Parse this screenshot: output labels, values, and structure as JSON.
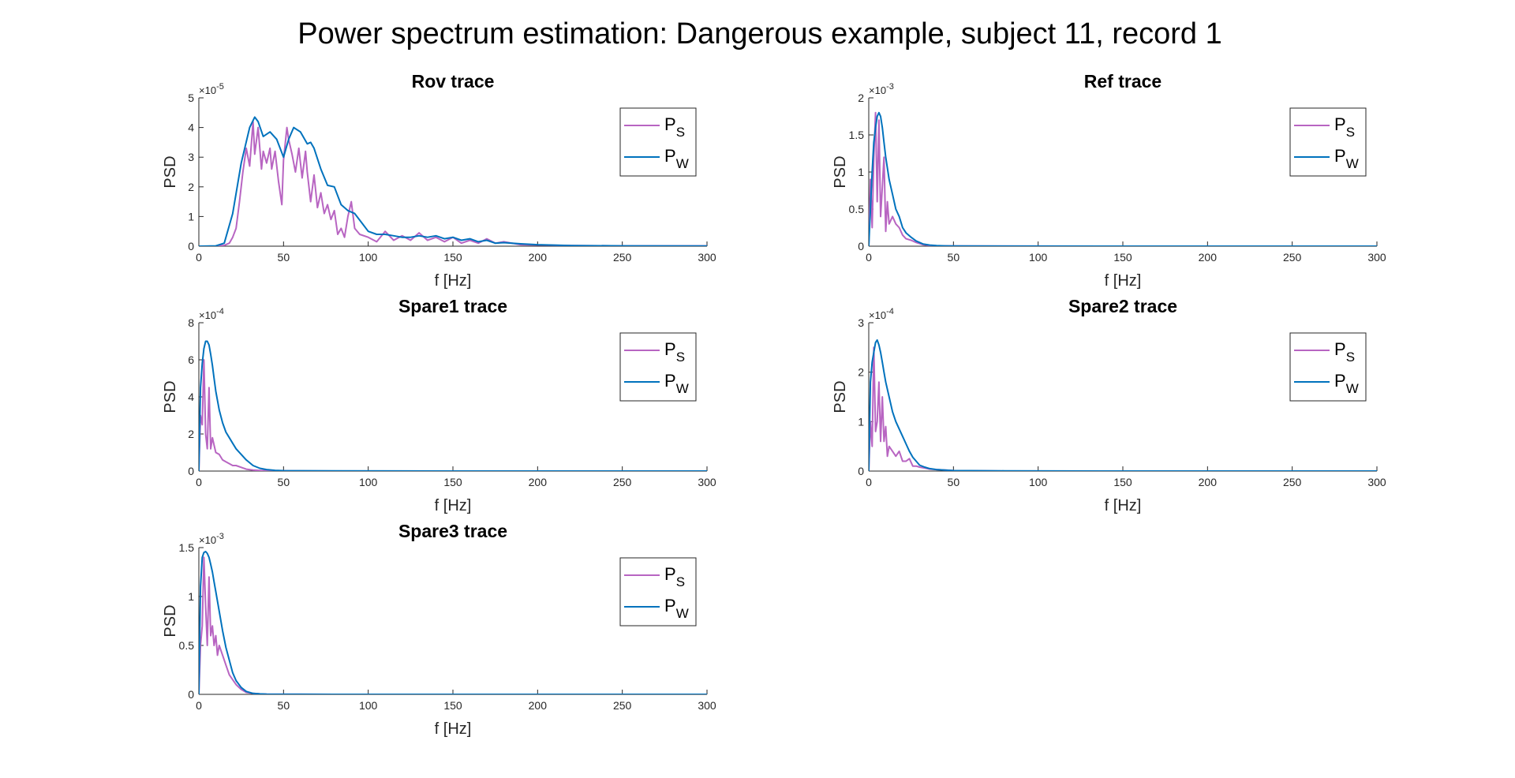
{
  "figure_title": "Power spectrum estimation: Dangerous example, subject 11, record 1",
  "colors": {
    "PS": "#B865C2",
    "PW": "#0072BD",
    "axis": "#262626"
  },
  "chart_data": [
    {
      "type": "line",
      "title": "Rov trace",
      "xlabel": "f [Hz]",
      "ylabel": "PSD",
      "xlim": [
        0,
        300
      ],
      "ylim": [
        0,
        5e-05
      ],
      "xticks": [
        0,
        50,
        100,
        150,
        200,
        250,
        300
      ],
      "yticks": [
        0,
        1e-05,
        2e-05,
        3e-05,
        4e-05,
        5e-05
      ],
      "ytick_labels": [
        "0",
        "1",
        "2",
        "3",
        "4",
        "5"
      ],
      "exponent": "-5",
      "legend": {
        "position": "top-right",
        "entries": [
          {
            "base": "P",
            "sub": "S"
          },
          {
            "base": "P",
            "sub": "W"
          }
        ]
      },
      "series": [
        {
          "name": "PS",
          "x": [
            0,
            10,
            15,
            18,
            20,
            22,
            24,
            26,
            28,
            30,
            32,
            33,
            35,
            37,
            38,
            40,
            42,
            43,
            45,
            47,
            49,
            50,
            52,
            53,
            55,
            57,
            59,
            61,
            63,
            64,
            66,
            68,
            70,
            72,
            74,
            76,
            78,
            80,
            82,
            84,
            86,
            88,
            90,
            92,
            95,
            100,
            105,
            110,
            115,
            120,
            125,
            130,
            135,
            140,
            145,
            150,
            155,
            160,
            165,
            170,
            175,
            180,
            190,
            200,
            220,
            250,
            275,
            300
          ],
          "y": [
            0,
            0,
            3e-07,
            1e-06,
            3e-06,
            6e-06,
            1.5e-05,
            2.5e-05,
            3.3e-05,
            2.7e-05,
            4.2e-05,
            3.1e-05,
            4e-05,
            2.6e-05,
            3.2e-05,
            2.8e-05,
            3.3e-05,
            2.6e-05,
            3.2e-05,
            2.2e-05,
            1.4e-05,
            2.9e-05,
            4e-05,
            3.6e-05,
            3.1e-05,
            2.5e-05,
            3.3e-05,
            2.3e-05,
            3.2e-05,
            2.5e-05,
            1.5e-05,
            2.4e-05,
            1.3e-05,
            1.8e-05,
            1.1e-05,
            1.4e-05,
            9e-06,
            1.2e-05,
            4e-06,
            6e-06,
            3e-06,
            1e-05,
            1.5e-05,
            6e-06,
            4e-06,
            3e-06,
            1.5e-06,
            5e-06,
            2e-06,
            3.5e-06,
            2e-06,
            4.5e-06,
            2e-06,
            3e-06,
            1.5e-06,
            3e-06,
            1e-06,
            2e-06,
            1e-06,
            2.5e-06,
            1e-06,
            1.5e-06,
            5e-07,
            4e-07,
            2e-07,
            1e-07,
            1e-07,
            1e-07
          ]
        },
        {
          "name": "PW",
          "x": [
            0,
            10,
            15,
            20,
            25,
            30,
            33,
            35,
            38,
            42,
            46,
            50,
            53,
            56,
            60,
            64,
            66,
            68,
            72,
            76,
            80,
            84,
            88,
            92,
            96,
            100,
            105,
            110,
            115,
            120,
            125,
            130,
            135,
            140,
            145,
            150,
            155,
            160,
            165,
            170,
            175,
            180,
            190,
            200,
            220,
            250,
            300
          ],
          "y": [
            0,
            1e-07,
            1e-06,
            1.1e-05,
            2.8e-05,
            4e-05,
            4.35e-05,
            4.2e-05,
            3.7e-05,
            3.85e-05,
            3.6e-05,
            3e-05,
            3.6e-05,
            4e-05,
            3.85e-05,
            3.45e-05,
            3.5e-05,
            3.3e-05,
            2.6e-05,
            2.05e-05,
            2e-05,
            1.4e-05,
            1.2e-05,
            1.1e-05,
            8e-06,
            5e-06,
            4e-06,
            4e-06,
            3.5e-06,
            3e-06,
            3e-06,
            3.5e-06,
            3e-06,
            3.5e-06,
            2.5e-06,
            3e-06,
            2e-06,
            2.5e-06,
            1.5e-06,
            2e-06,
            1e-06,
            1.2e-06,
            8e-07,
            5e-07,
            2e-07,
            1e-07,
            5e-08
          ]
        }
      ]
    },
    {
      "type": "line",
      "title": "Ref trace",
      "xlabel": "f [Hz]",
      "ylabel": "PSD",
      "xlim": [
        0,
        300
      ],
      "ylim": [
        0,
        0.002
      ],
      "xticks": [
        0,
        50,
        100,
        150,
        200,
        250,
        300
      ],
      "yticks": [
        0,
        0.0005,
        0.001,
        0.0015,
        0.002
      ],
      "ytick_labels": [
        "0",
        "0.5",
        "1",
        "1.5",
        "2"
      ],
      "exponent": "-3",
      "legend": {
        "position": "top-right",
        "entries": [
          {
            "base": "P",
            "sub": "S"
          },
          {
            "base": "P",
            "sub": "W"
          }
        ]
      },
      "series": [
        {
          "name": "PS",
          "x": [
            0,
            1,
            2,
            3,
            4,
            5,
            6,
            7,
            8,
            9,
            10,
            11,
            12,
            14,
            16,
            18,
            20,
            22,
            25,
            28,
            32,
            36,
            40,
            50,
            80,
            150,
            300
          ],
          "y": [
            0,
            0.0009,
            0.00025,
            0.0012,
            0.0018,
            0.0006,
            0.0017,
            0.0004,
            0.0008,
            0.0012,
            0.0002,
            0.0006,
            0.0003,
            0.0004,
            0.0003,
            0.00025,
            0.00015,
            0.0001,
            8e-05,
            5e-05,
            2e-05,
            1e-05,
            5e-06,
            2e-06,
            1e-06,
            0,
            0
          ]
        },
        {
          "name": "PW",
          "x": [
            0,
            1,
            2,
            3,
            4,
            5,
            6,
            7,
            8,
            9,
            10,
            12,
            14,
            16,
            18,
            20,
            22,
            25,
            28,
            32,
            36,
            40,
            45,
            50,
            80,
            150,
            300
          ],
          "y": [
            0,
            0.0005,
            0.001,
            0.0014,
            0.0016,
            0.00175,
            0.0018,
            0.00175,
            0.0016,
            0.0014,
            0.0012,
            0.0009,
            0.0007,
            0.0005,
            0.0004,
            0.00025,
            0.00018,
            0.00012,
            7e-05,
            3e-05,
            1.5e-05,
            8e-06,
            4e-06,
            2e-06,
            1e-06,
            0,
            0
          ]
        }
      ]
    },
    {
      "type": "line",
      "title": "Spare1 trace",
      "xlabel": "f [Hz]",
      "ylabel": "PSD",
      "xlim": [
        0,
        300
      ],
      "ylim": [
        0,
        0.0008
      ],
      "xticks": [
        0,
        50,
        100,
        150,
        200,
        250,
        300
      ],
      "yticks": [
        0,
        0.0002,
        0.0004,
        0.0006,
        0.0008
      ],
      "ytick_labels": [
        "0",
        "2",
        "4",
        "6",
        "8"
      ],
      "exponent": "-4",
      "legend": {
        "position": "top-right",
        "entries": [
          {
            "base": "P",
            "sub": "S"
          },
          {
            "base": "P",
            "sub": "W"
          }
        ]
      },
      "series": [
        {
          "name": "PS",
          "x": [
            0,
            1,
            2,
            3,
            4,
            5,
            6,
            7,
            8,
            9,
            10,
            12,
            14,
            16,
            18,
            20,
            22,
            25,
            28,
            32,
            36,
            40,
            50,
            80,
            150,
            300
          ],
          "y": [
            0,
            0.0003,
            0.00025,
            0.0006,
            0.0002,
            0.00012,
            0.00045,
            0.00012,
            0.00018,
            0.00014,
            0.0001,
            9e-05,
            6e-05,
            5e-05,
            4e-05,
            3e-05,
            3e-05,
            2e-05,
            1e-05,
            5e-06,
            3e-06,
            2e-06,
            1e-06,
            0,
            0,
            0
          ]
        },
        {
          "name": "PW",
          "x": [
            0,
            1,
            2,
            3,
            4,
            5,
            6,
            7,
            8,
            9,
            10,
            12,
            14,
            16,
            18,
            20,
            22,
            25,
            28,
            32,
            36,
            40,
            45,
            50,
            80,
            150,
            300
          ],
          "y": [
            0,
            0.00045,
            0.00058,
            0.00066,
            0.0007,
            0.0007,
            0.00068,
            0.00063,
            0.00057,
            0.0005,
            0.00043,
            0.00033,
            0.00026,
            0.00021,
            0.00018,
            0.00015,
            0.00012,
            9e-05,
            6e-05,
            3e-05,
            1.5e-05,
            8e-06,
            4e-06,
            2e-06,
            1e-06,
            0,
            0
          ]
        }
      ]
    },
    {
      "type": "line",
      "title": "Spare2 trace",
      "xlabel": "f [Hz]",
      "ylabel": "PSD",
      "xlim": [
        0,
        300
      ],
      "ylim": [
        0,
        0.0003
      ],
      "xticks": [
        0,
        50,
        100,
        150,
        200,
        250,
        300
      ],
      "yticks": [
        0,
        0.0001,
        0.0002,
        0.0003
      ],
      "ytick_labels": [
        "0",
        "1",
        "2",
        "3"
      ],
      "exponent": "-4",
      "legend": {
        "position": "top-right",
        "entries": [
          {
            "base": "P",
            "sub": "S"
          },
          {
            "base": "P",
            "sub": "W"
          }
        ]
      },
      "series": [
        {
          "name": "PS",
          "x": [
            0,
            1,
            2,
            3,
            4,
            5,
            6,
            7,
            8,
            9,
            10,
            11,
            12,
            14,
            16,
            18,
            20,
            22,
            24,
            26,
            28,
            30,
            33,
            36,
            40,
            45,
            50,
            80,
            150,
            300
          ],
          "y": [
            0,
            0.0001,
            5e-05,
            0.00025,
            8e-05,
            0.0001,
            0.00018,
            6e-05,
            0.00015,
            6e-05,
            9e-05,
            3e-05,
            5e-05,
            4e-05,
            3e-05,
            4e-05,
            2e-05,
            2e-05,
            2.5e-05,
            1e-05,
            1e-05,
            8e-06,
            6e-06,
            4e-06,
            3e-06,
            2e-06,
            1e-06,
            0,
            0,
            0
          ]
        },
        {
          "name": "PW",
          "x": [
            0,
            1,
            2,
            3,
            4,
            5,
            6,
            7,
            8,
            9,
            10,
            12,
            14,
            16,
            18,
            20,
            22,
            24,
            26,
            28,
            30,
            33,
            36,
            40,
            45,
            50,
            80,
            150,
            300
          ],
          "y": [
            0,
            0.00018,
            0.00022,
            0.00024,
            0.00026,
            0.000265,
            0.000255,
            0.00024,
            0.00022,
            0.0002,
            0.00018,
            0.00015,
            0.00012,
            0.0001,
            8.5e-05,
            7e-05,
            5.5e-05,
            4e-05,
            2.8e-05,
            2e-05,
            1.2e-05,
            8e-06,
            5e-06,
            3e-06,
            2e-06,
            1e-06,
            5e-07,
            0,
            0
          ]
        }
      ]
    },
    {
      "type": "line",
      "title": "Spare3 trace",
      "xlabel": "f [Hz]",
      "ylabel": "PSD",
      "xlim": [
        0,
        300
      ],
      "ylim": [
        0,
        0.0015
      ],
      "xticks": [
        0,
        50,
        100,
        150,
        200,
        250,
        300
      ],
      "yticks": [
        0,
        0.0005,
        0.001,
        0.0015
      ],
      "ytick_labels": [
        "0",
        "0.5",
        "1",
        "1.5"
      ],
      "exponent": "-3",
      "legend": {
        "position": "top-right",
        "entries": [
          {
            "base": "P",
            "sub": "S"
          },
          {
            "base": "P",
            "sub": "W"
          }
        ]
      },
      "series": [
        {
          "name": "PS",
          "x": [
            0,
            1,
            2,
            3,
            4,
            5,
            6,
            7,
            8,
            9,
            10,
            11,
            12,
            14,
            16,
            18,
            20,
            22,
            25,
            28,
            32,
            36,
            40,
            50,
            80,
            150,
            300
          ],
          "y": [
            0,
            0.0005,
            0.0007,
            0.0014,
            0.0009,
            0.0005,
            0.0012,
            0.0006,
            0.0007,
            0.0005,
            0.0006,
            0.0004,
            0.0005,
            0.0004,
            0.0003,
            0.0002,
            0.00015,
            0.0001,
            5e-05,
            2e-05,
            1e-05,
            5e-06,
            2e-06,
            1e-06,
            0,
            0,
            0
          ]
        },
        {
          "name": "PW",
          "x": [
            0,
            1,
            2,
            3,
            4,
            5,
            6,
            7,
            8,
            9,
            10,
            12,
            14,
            16,
            18,
            20,
            22,
            25,
            28,
            32,
            36,
            40,
            45,
            50,
            80,
            150,
            300
          ],
          "y": [
            0,
            0.0011,
            0.0014,
            0.00145,
            0.00146,
            0.00144,
            0.0014,
            0.00133,
            0.00125,
            0.00115,
            0.00105,
            0.00085,
            0.00065,
            0.00048,
            0.00035,
            0.00022,
            0.00014,
            7e-05,
            3e-05,
            1e-05,
            5e-06,
            2e-06,
            1e-06,
            5e-07,
            0,
            0,
            0
          ]
        }
      ]
    }
  ]
}
